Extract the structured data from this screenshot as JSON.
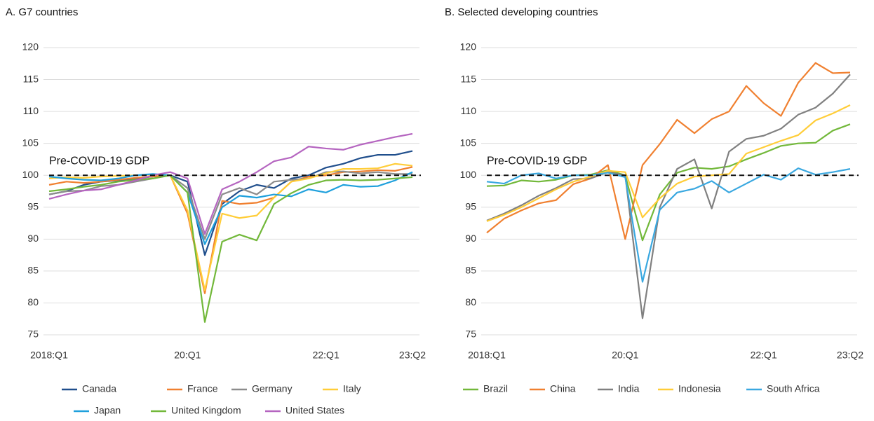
{
  "chart_data": [
    {
      "type": "line",
      "title": "A. G7 countries",
      "categories": [
        "2018:Q1",
        null,
        null,
        null,
        null,
        null,
        null,
        null,
        "20:Q1",
        null,
        null,
        null,
        null,
        null,
        null,
        null,
        "22:Q1",
        null,
        null,
        null,
        null,
        "23:Q2"
      ],
      "ylim": [
        75,
        120
      ],
      "yticks": [
        75,
        80,
        85,
        90,
        95,
        100,
        105,
        110,
        115,
        120
      ],
      "grid": true,
      "reference_line": 100,
      "annotation": "Pre-COVID-19 GDP",
      "legend": "bottom",
      "series": [
        {
          "name": "Canada",
          "color": "#1f4e8c",
          "values": [
            97,
            97.5,
            98.5,
            99,
            99.2,
            99.5,
            99.8,
            100,
            99,
            87.5,
            95.5,
            97.5,
            98.5,
            98,
            99.5,
            100,
            101.2,
            101.8,
            102.7,
            103.2,
            103.2,
            103.8
          ]
        },
        {
          "name": "France",
          "color": "#f08030",
          "values": [
            98.5,
            99,
            98.8,
            99,
            99.3,
            99.6,
            99.8,
            100,
            94,
            81.5,
            96,
            95.5,
            95.7,
            96.5,
            99,
            99.8,
            100,
            100.5,
            100.6,
            100.8,
            100.7,
            101.3
          ]
        },
        {
          "name": "Germany",
          "color": "#8c8c8c",
          "values": [
            97,
            97.5,
            97.6,
            98.3,
            98.5,
            99,
            99.5,
            100,
            98,
            90,
            97,
            98,
            97,
            99,
            99.3,
            99.5,
            100.5,
            100.6,
            100.3,
            100.5,
            100.2,
            100.2
          ]
        },
        {
          "name": "Italy",
          "color": "#ffcd38",
          "values": [
            99.5,
            99.7,
            99.6,
            99.8,
            99.9,
            100,
            100.1,
            100,
            94.5,
            82,
            94,
            93.3,
            93.7,
            96.5,
            99,
            99.5,
            100.3,
            101,
            101,
            101.1,
            101.8,
            101.5
          ]
        },
        {
          "name": "Japan",
          "color": "#1fa0dc",
          "values": [
            99.8,
            99.5,
            99.3,
            99.2,
            99.5,
            100,
            100.2,
            100,
            97.3,
            89.2,
            95,
            96.8,
            96.5,
            97,
            96.7,
            97.8,
            97.3,
            98.5,
            98.2,
            98.3,
            99.2,
            100.5
          ]
        },
        {
          "name": "United Kingdom",
          "color": "#72b83a",
          "values": [
            97.5,
            97.8,
            98.2,
            98.5,
            99,
            99.3,
            99.5,
            100,
            97.3,
            77,
            89.6,
            90.7,
            89.8,
            95.5,
            97.2,
            98.5,
            99.2,
            99.3,
            99.2,
            99.3,
            99.5,
            99.7
          ]
        },
        {
          "name": "United States",
          "color": "#b565c0",
          "values": [
            96.3,
            97,
            97.6,
            97.8,
            98.5,
            99.2,
            100,
            100.5,
            99.5,
            90.8,
            97.8,
            99,
            100.5,
            102.2,
            102.8,
            104.5,
            104.2,
            104,
            104.8,
            105.4,
            106,
            106.5
          ]
        }
      ]
    },
    {
      "type": "line",
      "title": "B. Selected developing countries",
      "categories": [
        "2018:Q1",
        null,
        null,
        null,
        null,
        null,
        null,
        null,
        "20:Q1",
        null,
        null,
        null,
        null,
        null,
        null,
        null,
        "22:Q1",
        null,
        null,
        null,
        null,
        "23:Q2"
      ],
      "ylim": [
        75,
        120
      ],
      "yticks": [
        75,
        80,
        85,
        90,
        95,
        100,
        105,
        110,
        115,
        120
      ],
      "grid": true,
      "reference_line": 100,
      "annotation": "Pre-COVID-19 GDP",
      "legend": "bottom",
      "series": [
        {
          "name": "Brazil",
          "color": "#72b83a",
          "values": [
            98.3,
            98.4,
            99.2,
            99,
            99.3,
            100,
            100.1,
            100.8,
            100,
            89.8,
            97,
            100.4,
            101.2,
            101,
            101.4,
            102.5,
            103.5,
            104.6,
            105,
            105.1,
            107,
            108
          ]
        },
        {
          "name": "China",
          "color": "#f08030",
          "values": [
            91,
            93.2,
            94.5,
            95.6,
            96.1,
            98.6,
            99.5,
            101.6,
            90,
            101.6,
            104.9,
            108.7,
            106.6,
            108.8,
            110,
            114,
            111.3,
            109.3,
            114.5,
            117.6,
            116,
            116.1
          ]
        },
        {
          "name": "India",
          "color": "#808080",
          "values": [
            92.9,
            94,
            95.3,
            96.8,
            98,
            99.4,
            99.5,
            100.5,
            100,
            77.6,
            95,
            101,
            102.5,
            94.8,
            103.7,
            105.7,
            106.2,
            107.3,
            109.5,
            110.6,
            112.8,
            115.8
          ]
        },
        {
          "name": "Indonesia",
          "color": "#ffcd38",
          "values": [
            92.8,
            93.8,
            95,
            96.4,
            97.8,
            99,
            99.8,
            100.7,
            100.5,
            93.4,
            96.4,
            98.7,
            99.8,
            100,
            100.2,
            103.4,
            104.4,
            105.4,
            106.3,
            108.6,
            109.7,
            111
          ]
        },
        {
          "name": "South Africa",
          "color": "#3aa8e0",
          "values": [
            99,
            98.7,
            100,
            100.3,
            99.5,
            100,
            100,
            100.4,
            99.7,
            83.3,
            94.6,
            97.3,
            97.9,
            99.1,
            97.3,
            98.7,
            100.1,
            99.3,
            101.1,
            100.1,
            100.5,
            101
          ]
        }
      ]
    }
  ]
}
